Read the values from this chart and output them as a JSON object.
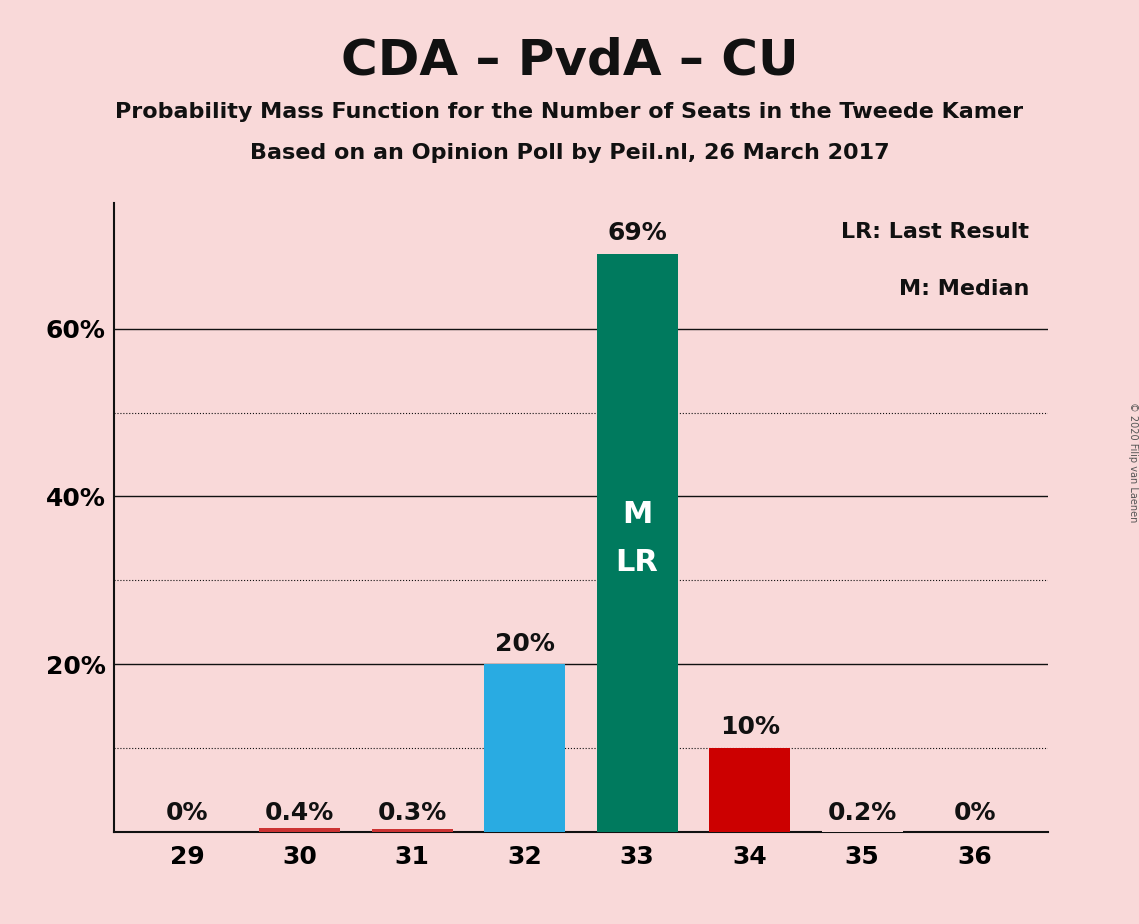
{
  "title": "CDA – PvdA – CU",
  "subtitle1": "Probability Mass Function for the Number of Seats in the Tweede Kamer",
  "subtitle2": "Based on an Opinion Poll by Peil.nl, 26 March 2017",
  "copyright": "© 2020 Filip van Laenen",
  "categories": [
    29,
    30,
    31,
    32,
    33,
    34,
    35,
    36
  ],
  "values": [
    0.0,
    0.4,
    0.3,
    20.0,
    69.0,
    10.0,
    0.2,
    0.0
  ],
  "bar_colors": [
    "#f9d9d9",
    "#cc3333",
    "#cc3333",
    "#29abe2",
    "#007a5e",
    "#cc0000",
    "#f9d9d9",
    "#f9d9d9"
  ],
  "bar_labels": [
    "0%",
    "0.4%",
    "0.3%",
    "20%",
    "69%",
    "10%",
    "0.2%",
    "0%"
  ],
  "annotation_bar": 4,
  "annotation_text": "M\nLR",
  "legend_text1": "LR: Last Result",
  "legend_text2": "M: Median",
  "background_color": "#f9d9d9",
  "ylim": [
    0,
    75
  ],
  "yticks_solid": [
    20,
    40,
    60
  ],
  "ytick_labels_solid": [
    "20%",
    "40%",
    "60%"
  ],
  "yticks_dotted": [
    10,
    30,
    50
  ],
  "title_fontsize": 36,
  "subtitle_fontsize": 16,
  "axis_fontsize": 18,
  "bar_label_fontsize": 18,
  "annotation_fontsize": 22,
  "legend_fontsize": 16
}
